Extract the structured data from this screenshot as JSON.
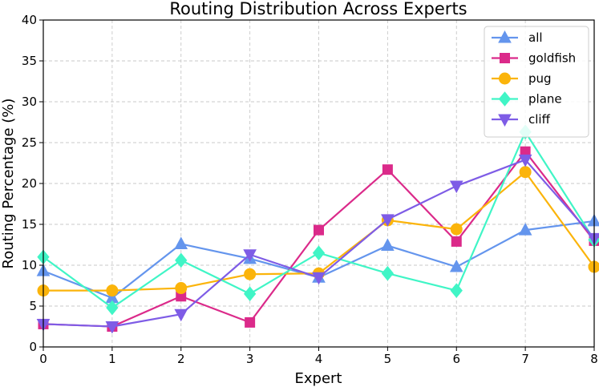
{
  "chart_data": {
    "type": "line",
    "title": "Routing Distribution Across Experts",
    "xlabel": "Expert",
    "ylabel": "Routing Percentage (%)",
    "x": [
      0,
      1,
      2,
      3,
      4,
      5,
      6,
      7,
      8
    ],
    "xlim": [
      0,
      8
    ],
    "ylim": [
      0,
      40
    ],
    "xticks": [
      "0",
      "1",
      "2",
      "3",
      "4",
      "5",
      "6",
      "7",
      "8"
    ],
    "yticks": [
      "0",
      "5",
      "10",
      "15",
      "20",
      "25",
      "30",
      "35",
      "40"
    ],
    "grid": true,
    "legend_position": "top-right",
    "series": [
      {
        "name": "all",
        "color": "#6495ED",
        "marker": "triangle-up",
        "values": [
          9.3,
          6.0,
          12.6,
          10.8,
          8.5,
          12.4,
          9.8,
          14.3,
          15.4
        ]
      },
      {
        "name": "goldfish",
        "color": "#DB2A8A",
        "marker": "square",
        "values": [
          2.8,
          2.5,
          6.2,
          3.0,
          14.3,
          21.7,
          12.9,
          23.9,
          13.0
        ]
      },
      {
        "name": "pug",
        "color": "#FBB40B",
        "marker": "circle",
        "values": [
          6.9,
          6.9,
          7.2,
          8.9,
          9.0,
          15.5,
          14.4,
          21.4,
          9.8
        ]
      },
      {
        "name": "plane",
        "color": "#40F5C6",
        "marker": "diamond",
        "values": [
          11.0,
          4.8,
          10.6,
          6.5,
          11.5,
          9.0,
          6.9,
          26.3,
          13.1
        ]
      },
      {
        "name": "cliff",
        "color": "#7E5CE6",
        "marker": "triangle-down",
        "values": [
          2.8,
          2.5,
          4.0,
          11.3,
          8.5,
          15.6,
          19.7,
          22.9,
          13.3
        ]
      }
    ]
  }
}
